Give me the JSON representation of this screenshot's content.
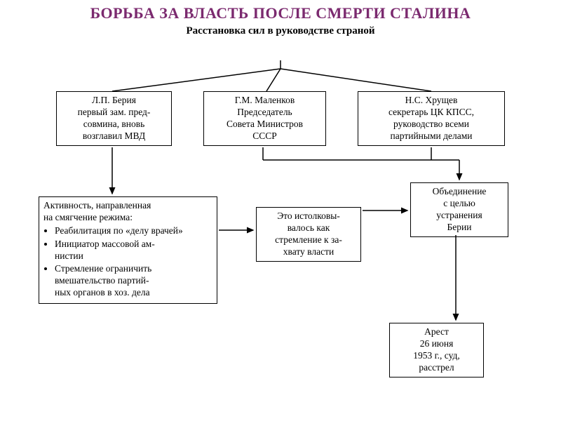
{
  "title_color": "#7b2a6f",
  "title": "БОРЬБА ЗА ВЛАСТЬ ПОСЛЕ СМЕРТИ СТАЛИНА",
  "subtitle": "Расстановка сил в руководстве страной",
  "boxes": {
    "beria": "Л.П. Берия\nпервый зам. пред-\nсовмина, вновь\nвозглавил МВД",
    "malenkov": "Г.М. Маленков\nПредседатель\nСовета Министров\nСССР",
    "khrushchev": "Н.С. Хрущев\nсекретарь ЦК КПСС,\nруководство всеми\nпартийными делами",
    "activity_header": "Активность, направленная\nна смягчение режима:",
    "activity_items": [
      "Реабилитация по «делу врачей»",
      "Инициатор массовой ам-\nнистии",
      "Стремление ограничить\nвмешательство партий-\nных органов в хоз. дела"
    ],
    "interpreted": "Это истолковы-\nвалось как\nстремление к за-\nхвату власти",
    "union": "Объединение\nс целью\nустранения\nБерии",
    "arrest": "Арест\n26 июня\n1953 г., суд,\nрасстрел"
  },
  "layout": {
    "title_fontsize": 22,
    "subtitle_fontsize": 15,
    "box_fontsize": 13.5,
    "line_color": "#000000",
    "line_width": 1.5,
    "bg": "#ffffff"
  }
}
